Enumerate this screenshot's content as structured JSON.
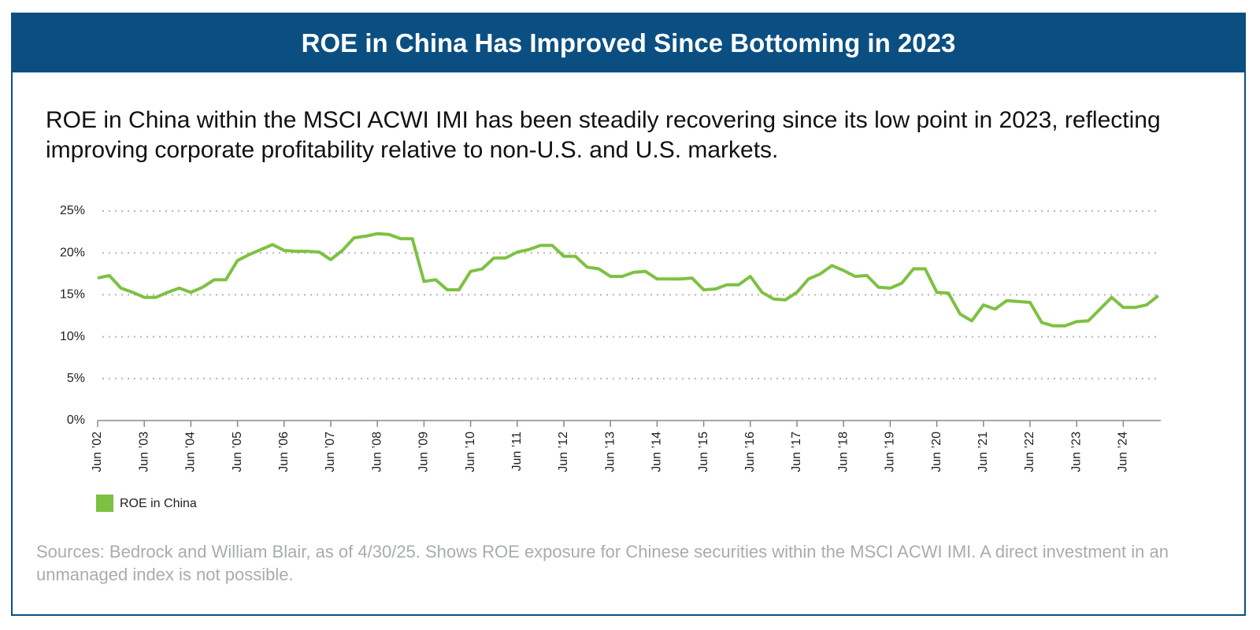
{
  "chart_data": {
    "type": "line",
    "title": "ROE in China Has Improved Since Bottoming in 2023",
    "subtitle": "ROE in China within the MSCI ACWI IMI has been steadily recovering since its low point in 2023, reflecting improving corporate profitability relative to non-U.S. and U.S. markets.",
    "source": "Sources: Bedrock and William Blair, as of 4/30/25. Shows ROE exposure for Chinese securities within the MSCI ACWI IMI. A direct investment in an unmanaged index is not possible.",
    "categories": [
      "Jun ’02",
      null,
      null,
      null,
      "Jun ’03",
      null,
      null,
      null,
      "Jun ’04",
      null,
      null,
      null,
      "Jun ’05",
      null,
      null,
      null,
      "Jun ’06",
      null,
      null,
      null,
      "Jun ’07",
      null,
      null,
      null,
      "Jun ’08",
      null,
      null,
      null,
      "Jun ’09",
      null,
      null,
      null,
      "Jun ’10",
      null,
      null,
      null,
      "Jun ’11",
      null,
      null,
      null,
      "Jun ’12",
      null,
      null,
      null,
      "Jun ’13",
      null,
      null,
      null,
      "Jun ’14",
      null,
      null,
      null,
      "Jun ’15",
      null,
      null,
      null,
      "Jun ’16",
      null,
      null,
      null,
      "Jun ’17",
      null,
      null,
      null,
      "Jun ’18",
      null,
      null,
      null,
      "Jun ’19",
      null,
      null,
      null,
      "Jun ’20",
      null,
      null,
      null,
      "Jun ’21",
      null,
      null,
      null,
      "Jun ’22",
      null,
      null,
      null,
      "Jun ’23",
      null,
      null,
      null,
      "Jun ’24",
      null,
      null,
      null
    ],
    "series": [
      {
        "name": "ROE in China",
        "color": "#7dc142",
        "values": [
          17.0,
          17.3,
          15.8,
          15.3,
          14.7,
          14.7,
          15.3,
          15.8,
          15.3,
          15.9,
          16.8,
          16.8,
          19.1,
          19.8,
          20.4,
          21.0,
          20.3,
          20.2,
          20.2,
          20.1,
          19.2,
          20.3,
          21.8,
          22.0,
          22.3,
          22.2,
          21.7,
          21.7,
          16.6,
          16.8,
          15.6,
          15.6,
          17.8,
          18.1,
          19.4,
          19.4,
          20.1,
          20.4,
          20.9,
          20.9,
          19.6,
          19.6,
          18.3,
          18.1,
          17.2,
          17.2,
          17.7,
          17.8,
          16.9,
          16.9,
          16.9,
          17.0,
          15.6,
          15.7,
          16.2,
          16.2,
          17.2,
          15.3,
          14.5,
          14.4,
          15.3,
          16.9,
          17.5,
          18.5,
          17.9,
          17.2,
          17.3,
          15.9,
          15.8,
          16.4,
          18.1,
          18.1,
          15.3,
          15.2,
          12.7,
          11.9,
          13.8,
          13.3,
          14.3,
          14.2,
          14.1,
          11.7,
          11.3,
          11.3,
          11.8,
          11.9,
          13.3,
          14.7,
          13.5,
          13.5,
          13.8,
          14.9
        ]
      }
    ],
    "ylim": [
      0,
      25
    ],
    "yticks": [
      {
        "value": 0,
        "label": "0%"
      },
      {
        "value": 5,
        "label": "5%"
      },
      {
        "value": 10,
        "label": "10%"
      },
      {
        "value": 15,
        "label": "15%"
      },
      {
        "value": 20,
        "label": "20%"
      },
      {
        "value": 25,
        "label": "25%"
      }
    ],
    "grid": true
  }
}
